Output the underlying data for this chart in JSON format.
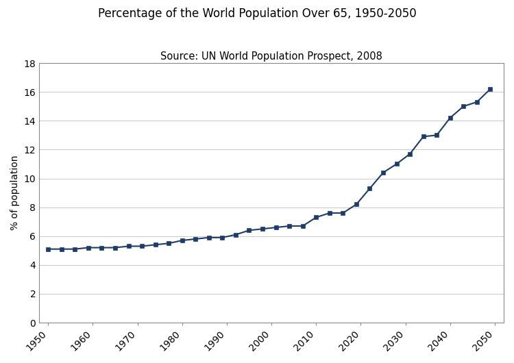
{
  "title": "Percentage of the World Population Over 65, 1950-2050",
  "subtitle": "Source: UN World Population Prospect, 2008",
  "ylabel": "% of population",
  "years": [
    1950,
    1953,
    1956,
    1959,
    1962,
    1965,
    1968,
    1971,
    1974,
    1977,
    1980,
    1983,
    1986,
    1989,
    1992,
    1995,
    1998,
    2001,
    2004,
    2007,
    2010,
    2013,
    2016,
    2019,
    2022,
    2025,
    2028,
    2031,
    2034,
    2037,
    2040,
    2043,
    2046,
    2049
  ],
  "values": [
    5.1,
    5.1,
    5.1,
    5.2,
    5.2,
    5.2,
    5.3,
    5.3,
    5.4,
    5.5,
    5.7,
    5.8,
    5.9,
    5.9,
    6.1,
    6.4,
    6.5,
    6.6,
    6.7,
    6.7,
    7.3,
    7.6,
    7.6,
    8.2,
    9.3,
    10.4,
    11.0,
    11.7,
    12.9,
    13.0,
    14.2,
    15.0,
    15.3,
    16.2
  ],
  "xlim": [
    1948,
    2052
  ],
  "ylim": [
    0,
    18
  ],
  "yticks": [
    0,
    2,
    4,
    6,
    8,
    10,
    12,
    14,
    16,
    18
  ],
  "xticks": [
    1950,
    1960,
    1970,
    1980,
    1990,
    2000,
    2010,
    2020,
    2030,
    2040,
    2050
  ],
  "line_color": "#1a3c6e",
  "marker": "s",
  "marker_size": 4,
  "line_width": 1.5,
  "grid_color": "#c8c8c8",
  "bg_color": "#ffffff",
  "title_fontsize": 12,
  "subtitle_fontsize": 10.5,
  "ylabel_fontsize": 10,
  "tick_fontsize": 10,
  "spine_color": "#888888"
}
